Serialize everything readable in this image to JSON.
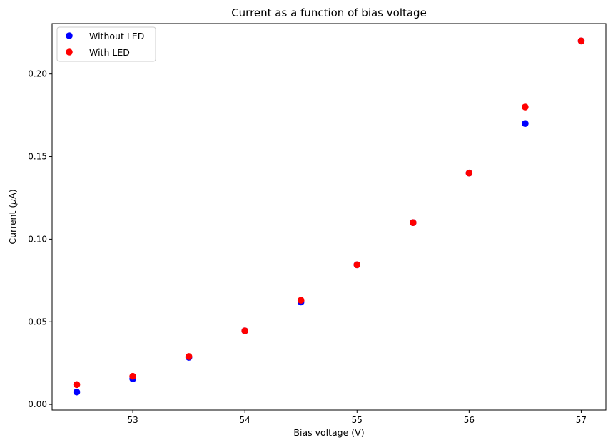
{
  "chart_data": {
    "type": "scatter",
    "title": "Current as a function of bias voltage",
    "xlabel": "Bias voltage (V)",
    "ylabel_prefix": "Current (",
    "ylabel_mu": "μ",
    "ylabel_suffix": "A)",
    "xlim": [
      52.28,
      57.22
    ],
    "ylim": [
      -0.0034,
      0.2305
    ],
    "xticks": [
      53,
      54,
      55,
      56,
      57
    ],
    "xtick_labels": [
      "53",
      "54",
      "55",
      "56",
      "57"
    ],
    "yticks": [
      0.0,
      0.05,
      0.1,
      0.15,
      0.2
    ],
    "ytick_labels": [
      "0.00",
      "0.05",
      "0.10",
      "0.15",
      "0.20"
    ],
    "grid": false,
    "legend_position": "upper-left",
    "series": [
      {
        "name": "Without LED",
        "color": "#0000ff",
        "points": [
          {
            "x": 52.5,
            "y": 0.0075
          },
          {
            "x": 53.0,
            "y": 0.0155
          },
          {
            "x": 53.5,
            "y": 0.0285
          },
          {
            "x": 54.0,
            "y": 0.0445
          },
          {
            "x": 54.5,
            "y": 0.062
          },
          {
            "x": 55.0,
            "y": 0.0845
          },
          {
            "x": 55.5,
            "y": 0.11
          },
          {
            "x": 56.0,
            "y": 0.14
          },
          {
            "x": 56.5,
            "y": 0.17
          },
          {
            "x": 57.0,
            "y": 0.22
          }
        ]
      },
      {
        "name": "With LED",
        "color": "#ff0000",
        "points": [
          {
            "x": 52.5,
            "y": 0.012
          },
          {
            "x": 53.0,
            "y": 0.017
          },
          {
            "x": 53.5,
            "y": 0.029
          },
          {
            "x": 54.0,
            "y": 0.0445
          },
          {
            "x": 54.5,
            "y": 0.063
          },
          {
            "x": 55.0,
            "y": 0.0845
          },
          {
            "x": 55.5,
            "y": 0.11
          },
          {
            "x": 56.0,
            "y": 0.14
          },
          {
            "x": 56.5,
            "y": 0.18
          },
          {
            "x": 57.0,
            "y": 0.22
          }
        ]
      }
    ]
  }
}
